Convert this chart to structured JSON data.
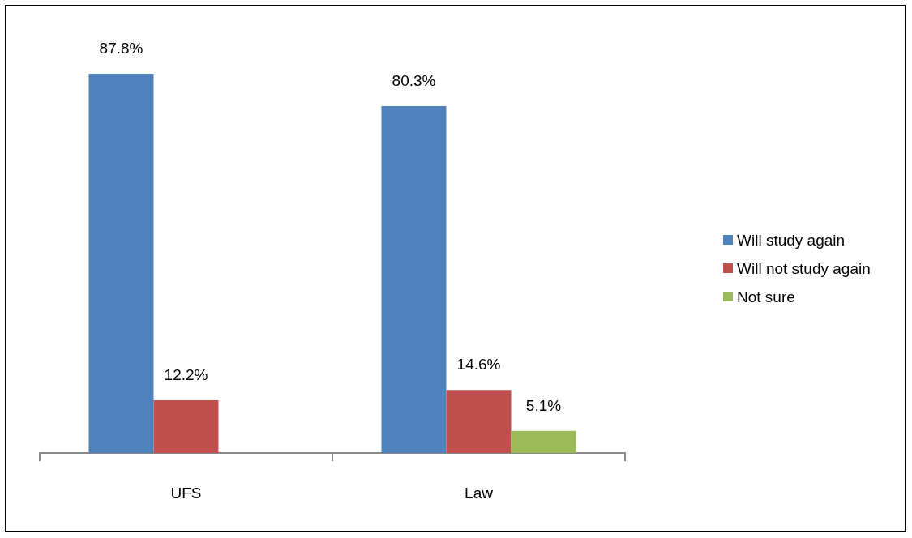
{
  "chart_data": {
    "type": "bar",
    "categories": [
      "UFS",
      "Law"
    ],
    "series": [
      {
        "name": "Will study again",
        "color": "#4f81bd",
        "values": [
          87.8,
          80.3
        ],
        "value_labels": [
          "87.8%",
          "80.3%"
        ]
      },
      {
        "name": "Will not study again",
        "color": "#c0504d",
        "values": [
          12.2,
          14.6
        ],
        "value_labels": [
          "12.2%",
          "14.6%"
        ]
      },
      {
        "name": "Not sure",
        "color": "#9bbb59",
        "values": [
          null,
          5.1
        ],
        "value_labels": [
          null,
          "5.1%"
        ]
      }
    ],
    "legend": "right"
  }
}
